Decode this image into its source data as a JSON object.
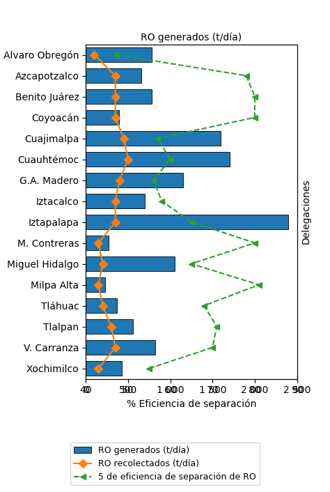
{
  "chart_data": {
    "type": "bar",
    "orientation": "horizontal",
    "categories": [
      "Xochimilco",
      "V. Carranza",
      "Tlalpan",
      "Tláhuac",
      "Milpa Alta",
      "Miguel Hidalgo",
      "M. Contreras",
      "Iztapalapa",
      "Iztacalco",
      "G.A. Madero",
      "Cuauhtémoc",
      "Cuajimalpa",
      "Coyoacán",
      "Benito Juárez",
      "Azcapotzalco",
      "Alvaro Obregón"
    ],
    "xlabel": "RO generados (t/día)",
    "x2label": "% Eficiencia de separación",
    "ylabel": "Delegaciones",
    "xlim": [
      0,
      2500
    ],
    "xticks": [
      0,
      500,
      {
        "value": 1000,
        "label": "1 000"
      },
      {
        "value": 1500,
        "label": "1 500"
      },
      {
        "value": 2000,
        "label": "2 000"
      },
      {
        "value": 2500,
        "label": "2 500"
      }
    ],
    "x2lim": [
      40,
      90
    ],
    "x2ticks": [
      40,
      50,
      60,
      70,
      80,
      90
    ],
    "legend": "lower center",
    "series": [
      {
        "name": "RO generados (t/día)",
        "type": "bar",
        "values": [
          430,
          820,
          560,
          370,
          230,
          1050,
          270,
          2400,
          700,
          1150,
          1700,
          1600,
          390,
          780,
          660,
          780
        ]
      },
      {
        "name": "RO recolectados (t/día)",
        "type": "line",
        "axis": "x2",
        "marker": "diamond",
        "line_style": "solid",
        "values": [
          43,
          47,
          46,
          44,
          43,
          44,
          43,
          47,
          47,
          48,
          50,
          49,
          47,
          47,
          47,
          42
        ]
      },
      {
        "name": "5 de eficiencia de separación de RO",
        "type": "line",
        "axis": "x2",
        "marker": "triangle_left",
        "line_style": "dashed",
        "values": [
          55,
          70,
          71,
          68,
          81,
          65,
          80,
          65,
          58,
          56,
          60,
          57,
          80,
          80,
          78,
          47
        ]
      }
    ]
  }
}
